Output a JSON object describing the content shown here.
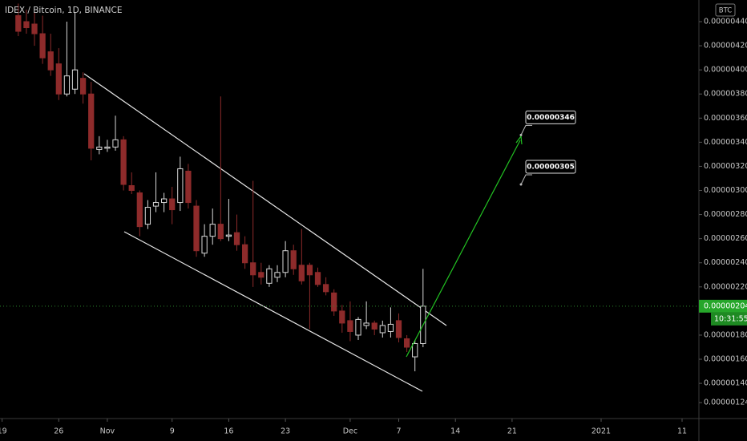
{
  "chart_data": {
    "type": "candlestick",
    "title": "IDEX / Bitcoin, 1D, BINANCE",
    "currency": "BTC",
    "x": [
      2,
      3,
      4,
      5,
      6,
      7,
      8,
      9,
      10,
      11,
      12,
      13,
      14,
      15,
      16,
      17,
      18,
      19,
      20,
      21,
      22,
      23,
      24,
      25,
      26,
      27,
      28,
      29,
      30,
      31,
      32,
      33,
      34,
      35,
      36,
      37,
      38,
      39,
      40,
      41,
      42,
      43,
      44,
      45,
      46,
      47,
      48,
      49,
      50,
      51,
      52
    ],
    "open": [
      4.45e-06,
      4.4e-06,
      4.38e-06,
      4.3e-06,
      4.15e-06,
      4.05e-06,
      3.8e-06,
      3.84e-06,
      3.93e-06,
      3.8e-06,
      3.34e-06,
      3.35e-06,
      3.36e-06,
      3.42e-06,
      3.04e-06,
      2.98e-06,
      2.72e-06,
      2.87e-06,
      2.9e-06,
      2.93e-06,
      2.9e-06,
      3.16e-06,
      2.87e-06,
      2.48e-06,
      2.62e-06,
      2.72e-06,
      2.62e-06,
      2.65e-06,
      2.55e-06,
      2.4e-06,
      2.32e-06,
      2.23e-06,
      2.28e-06,
      2.32e-06,
      2.5e-06,
      2.38e-06,
      2.38e-06,
      2.32e-06,
      2.22e-06,
      2.15e-06,
      2e-06,
      1.92e-06,
      1.8e-06,
      1.88e-06,
      1.9e-06,
      1.82e-06,
      1.83e-06,
      1.92e-06,
      1.77e-06,
      1.62e-06,
      1.73e-06
    ],
    "high": [
      4.55e-06,
      4.5e-06,
      4.48e-06,
      4.45e-06,
      4.3e-06,
      4.18e-06,
      4.4e-06,
      4.48e-06,
      3.98e-06,
      3.9e-06,
      3.45e-06,
      3.42e-06,
      3.62e-06,
      3.45e-06,
      3.15e-06,
      3e-06,
      2.92e-06,
      3.15e-06,
      2.98e-06,
      3.03e-06,
      3.28e-06,
      3.22e-06,
      2.92e-06,
      2.72e-06,
      2.85e-06,
      3.78e-06,
      2.93e-06,
      2.8e-06,
      2.62e-06,
      3.08e-06,
      2.4e-06,
      2.38e-06,
      2.38e-06,
      2.58e-06,
      2.55e-06,
      2.68e-06,
      2.4e-06,
      2.36e-06,
      2.28e-06,
      2.18e-06,
      2.05e-06,
      2.08e-06,
      1.95e-06,
      2.08e-06,
      1.92e-06,
      1.92e-06,
      2.03e-06,
      1.98e-06,
      1.8e-06,
      1.76e-06,
      2.35e-06
    ],
    "low": [
      4.28e-06,
      4.3e-06,
      4.2e-06,
      4.05e-06,
      3.95e-06,
      3.75e-06,
      3.78e-06,
      3.8e-06,
      3.72e-06,
      3.25e-06,
      3.3e-06,
      3.32e-06,
      3.33e-06,
      3e-06,
      2.97e-06,
      2.62e-06,
      2.68e-06,
      2.82e-06,
      2.82e-06,
      2.72e-06,
      2.83e-06,
      2.85e-06,
      2.45e-06,
      2.45e-06,
      2.55e-06,
      2.58e-06,
      2.58e-06,
      2.5e-06,
      2.35e-06,
      2.2e-06,
      2.22e-06,
      2.2e-06,
      2.24e-06,
      2.28e-06,
      2.3e-06,
      2.22e-06,
      1.85e-06,
      2.2e-06,
      2.13e-06,
      1.96e-06,
      1.82e-06,
      1.75e-06,
      1.76e-06,
      1.85e-06,
      1.8e-06,
      1.78e-06,
      1.78e-06,
      1.74e-06,
      1.66e-06,
      1.5e-06,
      1.7e-06
    ],
    "close": [
      4.32e-06,
      4.35e-06,
      4.3e-06,
      4.1e-06,
      4e-06,
      3.8e-06,
      3.95e-06,
      4e-06,
      3.8e-06,
      3.35e-06,
      3.36e-06,
      3.36e-06,
      3.42e-06,
      3.05e-06,
      3e-06,
      2.7e-06,
      2.86e-06,
      2.9e-06,
      2.93e-06,
      2.84e-06,
      3.18e-06,
      2.9e-06,
      2.5e-06,
      2.62e-06,
      2.72e-06,
      2.6e-06,
      2.63e-06,
      2.55e-06,
      2.4e-06,
      2.3e-06,
      2.28e-06,
      2.35e-06,
      2.32e-06,
      2.5e-06,
      2.35e-06,
      2.25e-06,
      2.3e-06,
      2.22e-06,
      2.16e-06,
      2e-06,
      1.9e-06,
      1.83e-06,
      1.93e-06,
      1.9e-06,
      1.85e-06,
      1.88e-06,
      1.89e-06,
      1.78e-06,
      1.7e-06,
      1.73e-06,
      2.04e-06
    ],
    "up_color": "#d8d8d8",
    "down_color": "#8e2b2b",
    "xlim": [
      -0.26,
      86.08
    ],
    "xticks": [
      {
        "value": 0,
        "label": "19"
      },
      {
        "value": 7,
        "label": "26"
      },
      {
        "value": 13,
        "label": "Nov"
      },
      {
        "value": 21,
        "label": "9"
      },
      {
        "value": 28,
        "label": "16"
      },
      {
        "value": 35,
        "label": "23"
      },
      {
        "value": 43,
        "label": "Dec"
      },
      {
        "value": 49,
        "label": "7"
      },
      {
        "value": 56,
        "label": "14"
      },
      {
        "value": 63,
        "label": "21"
      },
      {
        "value": 74,
        "label": "2021"
      },
      {
        "value": 84,
        "label": "11"
      }
    ],
    "ylim": [
      1.1081e-06,
      4.5796e-06
    ],
    "yticks": [
      {
        "value": 4.4e-06,
        "label": "0.00000440"
      },
      {
        "value": 4.2e-06,
        "label": "0.00000420"
      },
      {
        "value": 4e-06,
        "label": "0.00000400"
      },
      {
        "value": 3.8e-06,
        "label": "0.00000380"
      },
      {
        "value": 3.6e-06,
        "label": "0.00000360"
      },
      {
        "value": 3.4e-06,
        "label": "0.00000340"
      },
      {
        "value": 3.2e-06,
        "label": "0.00000320"
      },
      {
        "value": 3e-06,
        "label": "0.00000300"
      },
      {
        "value": 2.8e-06,
        "label": "0.00000280"
      },
      {
        "value": 2.6e-06,
        "label": "0.00000260"
      },
      {
        "value": 2.4e-06,
        "label": "0.00000240"
      },
      {
        "value": 2.2e-06,
        "label": "0.00000220"
      },
      {
        "value": 1.8e-06,
        "label": "0.00000180"
      },
      {
        "value": 1.6e-06,
        "label": "0.00000160"
      },
      {
        "value": 1.4e-06,
        "label": "0.00000140"
      },
      {
        "value": 1.24e-06,
        "label": "0.00000124"
      }
    ],
    "last_price": {
      "value": 2.04e-06,
      "label": "0.00000204"
    },
    "countdown": "10:31:55",
    "annotations": [
      {
        "value": 3.46e-06,
        "label": "0.00000346"
      },
      {
        "value": 3.05e-06,
        "label": "0.00000305"
      }
    ]
  }
}
